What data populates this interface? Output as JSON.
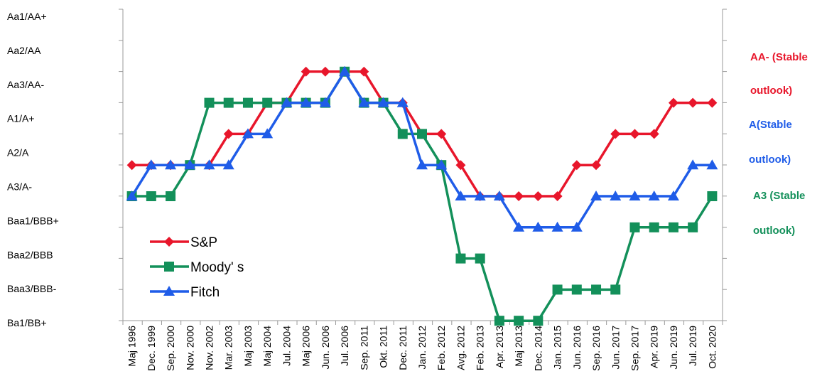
{
  "chart_data": {
    "type": "line",
    "x": [
      "Maj 1996",
      "Dec. 1999",
      "Sep. 2000",
      "Nov. 2000",
      "Nov. 2002",
      "Mar. 2003",
      "Maj 2003",
      "Maj 2004",
      "Jul. 2004",
      "Maj 2006",
      "Jun. 2006",
      "Jul. 2006",
      "Sep. 2011",
      "Okt. 2011",
      "Dec. 2011",
      "Jan. 2012",
      "Feb. 2012",
      "Avg. 2012",
      "Feb. 2013",
      "Apr. 2013",
      "Maj 2013",
      "Dec. 2014",
      "Jan. 2015",
      "Jun. 2016",
      "Sep. 2016",
      "Jun. 2017",
      "Sep. 2017",
      "Apr. 2019",
      "Jun. 2019",
      "Jul. 2019",
      "Oct. 2020"
    ],
    "y_tick_labels": [
      "Aa1/AA+",
      "Aa2/AA",
      "Aa3/AA-",
      "A1/A+",
      "A2/A",
      "A3/A-",
      "Baa1/BBB+",
      "Baa2/BBB",
      "Baa3/BBB-",
      "Ba1/BB+"
    ],
    "y_note": "rating step: 0 = Aa1/AA+ ... 9 = Ba1/BB+",
    "series": [
      {
        "name": "S&P",
        "color": "#e8162b",
        "marker": "diamond",
        "values": [
          4,
          4,
          4,
          4,
          4,
          3,
          3,
          2,
          2,
          1,
          1,
          1,
          1,
          2,
          2,
          3,
          3,
          4,
          5,
          5,
          5,
          5,
          5,
          4,
          4,
          3,
          3,
          3,
          2,
          2,
          2
        ]
      },
      {
        "name": "Moody' s",
        "color": "#13905a",
        "marker": "square",
        "values": [
          5,
          5,
          5,
          4,
          2,
          2,
          2,
          2,
          2,
          2,
          2,
          1,
          2,
          2,
          3,
          3,
          4,
          7,
          7,
          9,
          9,
          9,
          8,
          8,
          8,
          8,
          6,
          6,
          6,
          6,
          5
        ]
      },
      {
        "name": "Fitch",
        "color": "#1f5ce8",
        "marker": "triangle",
        "values": [
          5,
          4,
          4,
          4,
          4,
          4,
          3,
          3,
          2,
          2,
          2,
          1,
          2,
          2,
          2,
          4,
          4,
          5,
          5,
          5,
          6,
          6,
          6,
          6,
          5,
          5,
          5,
          5,
          5,
          4,
          4
        ]
      }
    ],
    "legend_position": "lower-left",
    "annotations": [
      {
        "lines": [
          "AA- (Stable",
          "outlook)"
        ],
        "color": "#e8162b"
      },
      {
        "lines": [
          "A(Stable",
          "outlook)"
        ],
        "color": "#1f5ce8"
      },
      {
        "lines": [
          "A3 (Stable",
          "outlook)"
        ],
        "color": "#13905a"
      }
    ]
  }
}
